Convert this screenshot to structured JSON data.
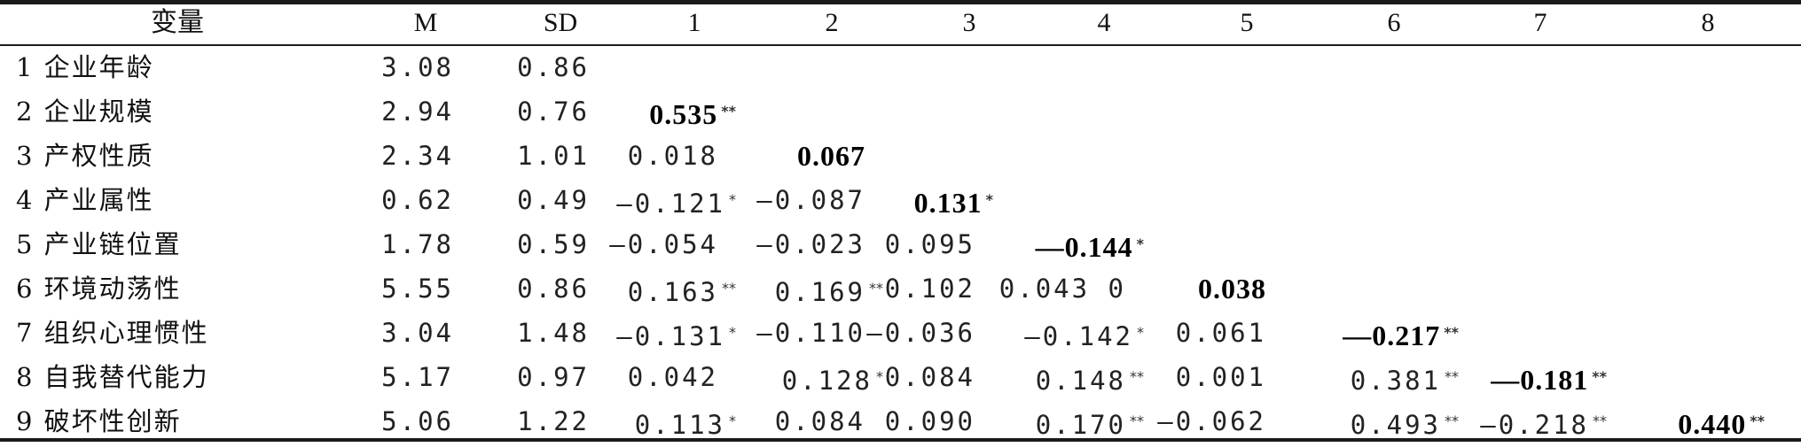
{
  "headers": [
    "变量",
    "M",
    "SD",
    "1",
    "2",
    "3",
    "4",
    "5",
    "6",
    "7",
    "8"
  ],
  "rows": [
    {
      "label": "1 企业年龄",
      "m": "3.08",
      "sd": "0.86",
      "cells": []
    },
    {
      "label": "2 企业规模",
      "m": "2.94",
      "sd": "0.76",
      "cells": [
        {
          "v": "0.535",
          "sig": "**",
          "bold": true
        }
      ]
    },
    {
      "label": "3 产权性质",
      "m": "2.34",
      "sd": "1.01",
      "cells": [
        {
          "v": "0.018",
          "sig": ""
        },
        {
          "v": "0.067",
          "sig": "",
          "bold": true
        }
      ]
    },
    {
      "label": "4 产业属性",
      "m": "0.62",
      "sd": "0.49",
      "cells": [
        {
          "v": "—0.121",
          "sig": "*"
        },
        {
          "v": "—0.087",
          "sig": ""
        },
        {
          "v": "0.131",
          "sig": "*",
          "bold": true
        }
      ]
    },
    {
      "label": "5 产业链位置",
      "m": "1.78",
      "sd": "0.59",
      "cells": [
        {
          "v": "—0.054",
          "sig": ""
        },
        {
          "v": "—0.023",
          "sig": ""
        },
        {
          "v": "0.095",
          "sig": ""
        },
        {
          "v": "—0.144",
          "sig": "*",
          "bold": true
        }
      ]
    },
    {
      "label": "6 环境动荡性",
      "m": "5.55",
      "sd": "0.86",
      "cells": [
        {
          "v": "0.163",
          "sig": "**"
        },
        {
          "v": "0.169",
          "sig": "**"
        },
        {
          "v": "0.102",
          "sig": ""
        },
        {
          "v": "0.043 0",
          "sig": ""
        },
        {
          "v": "0.038",
          "sig": "",
          "bold": true
        }
      ]
    },
    {
      "label": "7 组织心理惯性",
      "m": "3.04",
      "sd": "1.48",
      "cells": [
        {
          "v": "—0.131",
          "sig": "*"
        },
        {
          "v": "—0.110",
          "sig": ""
        },
        {
          "v": "—0.036",
          "sig": ""
        },
        {
          "v": "—0.142",
          "sig": "*"
        },
        {
          "v": "0.061",
          "sig": ""
        },
        {
          "v": "—0.217",
          "sig": "**",
          "bold": true
        }
      ]
    },
    {
      "label": "8 自我替代能力",
      "m": "5.17",
      "sd": "0.97",
      "cells": [
        {
          "v": "0.042",
          "sig": ""
        },
        {
          "v": "0.128",
          "sig": "*"
        },
        {
          "v": "0.084",
          "sig": ""
        },
        {
          "v": "0.148",
          "sig": "**"
        },
        {
          "v": "0.001",
          "sig": ""
        },
        {
          "v": "0.381",
          "sig": "**"
        },
        {
          "v": "—0.181",
          "sig": "**",
          "bold": true
        }
      ]
    },
    {
      "label": "9 破坏性创新",
      "m": "5.06",
      "sd": "1.22",
      "cells": [
        {
          "v": "0.113",
          "sig": "*"
        },
        {
          "v": "0.084",
          "sig": ""
        },
        {
          "v": "0.090",
          "sig": ""
        },
        {
          "v": "0.170",
          "sig": "**"
        },
        {
          "v": "—0.062",
          "sig": ""
        },
        {
          "v": "0.493",
          "sig": "**"
        },
        {
          "v": "—0.218",
          "sig": "**"
        },
        {
          "v": "0.440",
          "sig": "**",
          "bold": true
        }
      ]
    }
  ]
}
